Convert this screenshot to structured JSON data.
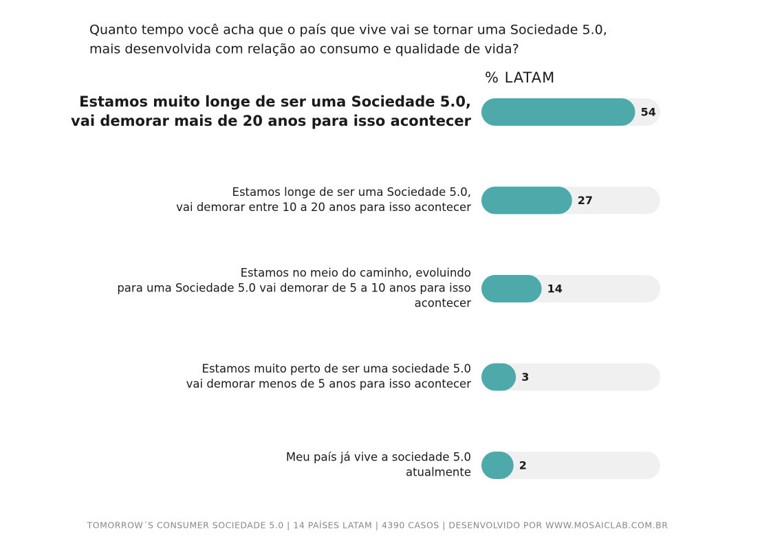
{
  "chart_data": {
    "type": "bar",
    "orientation": "horizontal",
    "title": [
      "Quanto tempo você acha que o país que vive vai se tornar uma Sociedade 5.0,",
      "mais desenvolvida com relação ao consumo e qualidade de vida?"
    ],
    "column_header": "% LATAM",
    "categories": [
      [
        "Estamos muito longe de ser uma Sociedade 5.0,",
        "vai demorar mais de 20 anos para isso acontecer"
      ],
      [
        "Estamos longe de ser uma Sociedade 5.0,",
        "vai demorar entre 10 a 20 anos para isso acontecer"
      ],
      [
        "Estamos no meio do caminho, evoluindo",
        "para uma Sociedade 5.0  vai demorar de 5 a 10 anos para isso",
        "acontecer"
      ],
      [
        "Estamos muito perto de ser uma sociedade 5.0",
        "vai demorar menos de 5 anos para isso acontecer"
      ],
      [
        "Meu país já vive a sociedade 5.0",
        "atualmente"
      ]
    ],
    "values": [
      54,
      27,
      14,
      3,
      2
    ],
    "emphasized_category": 0,
    "color": "#4ea9aa",
    "track_color": "#f0f0f0",
    "footer": "TOMORROW´S CONSUMER SOCIEDADE 5.0 | 14 PAÍSES LATAM | 4390 CASOS | DESENVOLVIDO POR WWW.MOSAICLAB.COM.BR"
  }
}
